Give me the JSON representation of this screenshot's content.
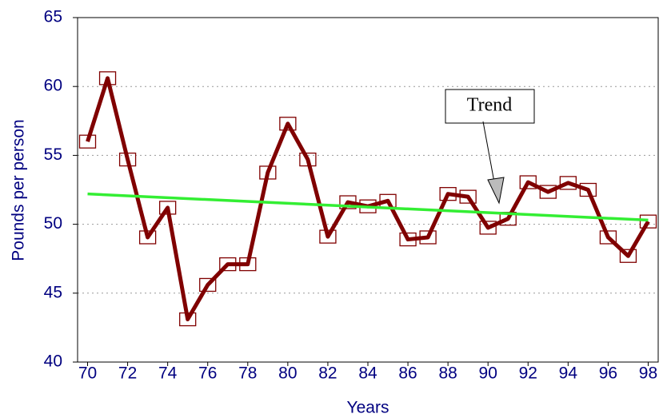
{
  "chart_data": {
    "type": "line",
    "x": [
      70,
      71,
      72,
      73,
      74,
      75,
      76,
      77,
      78,
      79,
      80,
      81,
      82,
      83,
      84,
      85,
      86,
      87,
      88,
      89,
      90,
      91,
      92,
      93,
      94,
      95,
      96,
      97,
      98
    ],
    "series": [
      {
        "color": "#800000",
        "values": [
          56.0,
          60.6,
          54.7,
          49.05,
          51.2,
          43.1,
          45.6,
          47.1,
          47.1,
          53.75,
          57.3,
          54.7,
          49.1,
          51.6,
          51.3,
          51.7,
          48.9,
          49.05,
          52.2,
          52.0,
          49.75,
          50.4,
          53.05,
          52.35,
          53.0,
          52.5,
          49.05,
          47.7,
          50.2
        ]
      },
      {
        "color": "#33ee33",
        "x": [
          70,
          98
        ],
        "values": [
          52.2,
          50.3
        ]
      }
    ],
    "xlabel": "Years",
    "ylabel": "Pounds per person",
    "annotation": "Trend",
    "xlim": [
      69.5,
      98.5
    ],
    "xticks": [
      70,
      72,
      74,
      76,
      78,
      80,
      82,
      84,
      86,
      88,
      90,
      92,
      94,
      96,
      98
    ],
    "ylim": [
      40,
      65
    ],
    "yticks": [
      40,
      45,
      50,
      55,
      60,
      65
    ],
    "grid": true
  }
}
